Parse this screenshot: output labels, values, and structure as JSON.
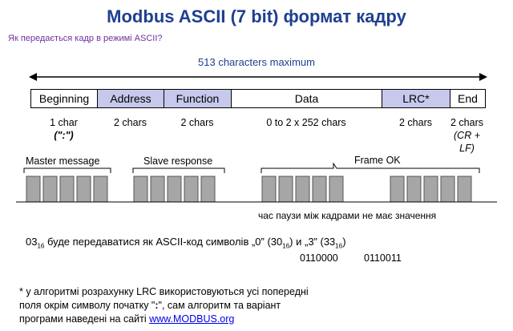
{
  "title": "Modbus ASCII (7 bit) формат кадру",
  "subtitle": "Як передається  кадр в режимі  ASCII?",
  "max_label": "513 characters maximum",
  "frame": {
    "fields": [
      {
        "label": "Beginning",
        "size": "1 char",
        "size2": "(\":\")"
      },
      {
        "label": "Address",
        "size": "2 chars",
        "size2": ""
      },
      {
        "label": "Function",
        "size": "2 chars",
        "size2": ""
      },
      {
        "label": "Data",
        "size": "0 to 2 x 252 chars",
        "size2": ""
      },
      {
        "label": "LRC*",
        "size": "2 chars",
        "size2": ""
      },
      {
        "label": "End",
        "size": "2 chars",
        "size2": "(CR + LF)"
      }
    ]
  },
  "timing": {
    "master_label": "Master message",
    "slave_label": "Slave response",
    "frame_ok_label": "Frame OK",
    "pause_text": "час паузи між кадрами  не має значення"
  },
  "encoding": {
    "prefix": "03",
    "sub": "16",
    "text": " буде передаватися як ASCII-код символів „0” (30",
    "sub2": "16",
    "text2": ") и „3” (33",
    "sub3": "16",
    "text3": ")",
    "bin_0": "0110000",
    "bin_3": "0110011"
  },
  "note": {
    "line1": "* у алгоритмі  розрахунку LRC використовуються усі попередні",
    "line2a": "поля окрім символу початку \"",
    "line2_bold": ":",
    "line2b": "\", сам алгоритм та варіант",
    "line3": "програми  наведені на сайті ",
    "link": "www.MODBUS.org"
  },
  "colors": {
    "title": "#1f3f8f",
    "subtitle": "#7030a0",
    "field_highlight": "#c6c9ec",
    "block_fill": "#a6a6a6"
  }
}
